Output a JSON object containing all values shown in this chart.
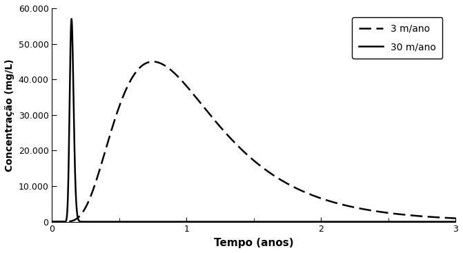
{
  "title": "",
  "xlabel": "Tempo (anos)",
  "ylabel": "Concentração (mg/L)",
  "xlim": [
    0,
    3
  ],
  "ylim": [
    0,
    60000
  ],
  "yticks": [
    0,
    10000,
    20000,
    30000,
    40000,
    50000,
    60000
  ],
  "ytick_labels": [
    "0",
    "10.000",
    "20.000",
    "30.000",
    "40.000",
    "50.000",
    "60.000"
  ],
  "xticks": [
    0,
    1,
    2,
    3
  ],
  "xtick_labels": [
    "0",
    "1",
    "2",
    "3"
  ],
  "legend_labels": [
    "3 m/ano",
    "30 m/ano"
  ],
  "legend_loc": "upper right",
  "background_color": "#ffffff",
  "line_color": "#000000",
  "curve_3_peak": 45000,
  "curve_3_peak_x": 0.75,
  "curve_3_sigma": 0.5,
  "curve_30_peak": 57000,
  "curve_30_peak_x": 0.145,
  "curve_30_sigma": 0.1
}
